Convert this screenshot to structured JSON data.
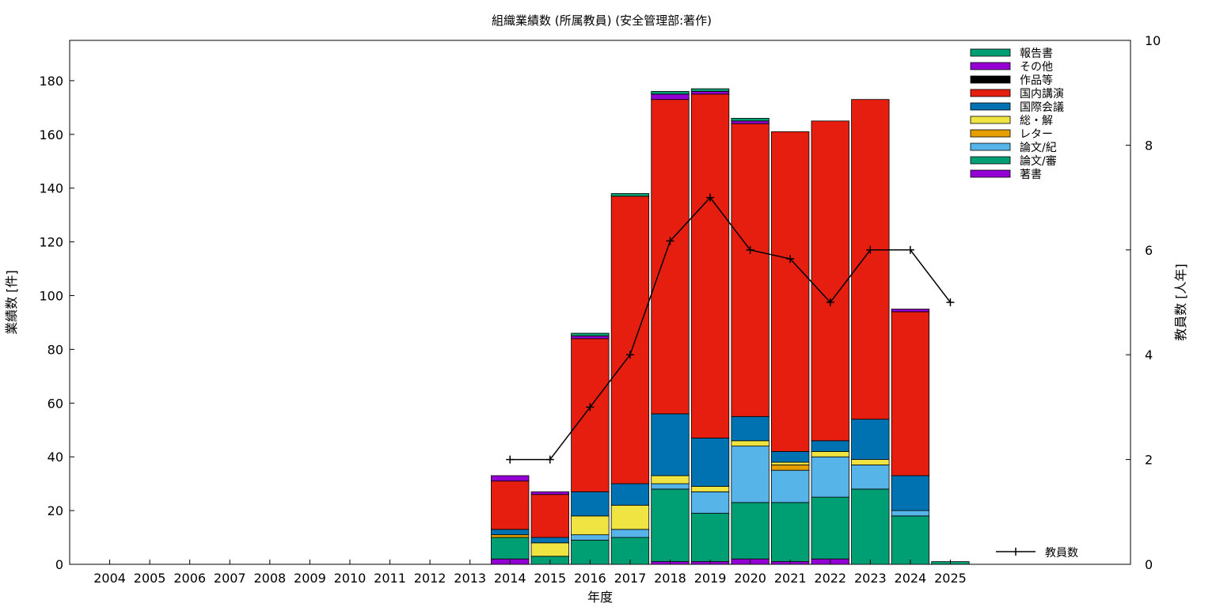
{
  "chart_data": {
    "type": "bar",
    "stacked": true,
    "title": "組織業績数 (所属教員) (安全管理部:著作)",
    "xlabel": "年度",
    "ylabel": "業績数 [件]",
    "y2label": "教員数 [人年]",
    "categories": [
      "2004",
      "2005",
      "2006",
      "2007",
      "2008",
      "2009",
      "2010",
      "2011",
      "2012",
      "2013",
      "2014",
      "2015",
      "2016",
      "2017",
      "2018",
      "2019",
      "2020",
      "2021",
      "2022",
      "2023",
      "2024",
      "2025"
    ],
    "ylim": [
      0,
      195
    ],
    "yticks": [
      0,
      20,
      40,
      60,
      80,
      100,
      120,
      140,
      160,
      180
    ],
    "y2lim": [
      0,
      10
    ],
    "y2ticks": [
      0,
      2,
      4,
      6,
      8,
      10
    ],
    "grid": false,
    "legend_position": "top-right",
    "series": [
      {
        "name": "著書",
        "color": "#9400d3",
        "values": [
          0,
          0,
          0,
          0,
          0,
          0,
          0,
          0,
          0,
          0,
          2,
          0,
          0,
          0,
          1,
          1,
          2,
          1,
          2,
          0,
          0,
          0
        ]
      },
      {
        "name": "論文/審",
        "color": "#009e73",
        "values": [
          0,
          0,
          0,
          0,
          0,
          0,
          0,
          0,
          0,
          0,
          8,
          3,
          9,
          10,
          27,
          18,
          21,
          22,
          23,
          28,
          18,
          1
        ]
      },
      {
        "name": "論文/紀",
        "color": "#56b4e9",
        "values": [
          0,
          0,
          0,
          0,
          0,
          0,
          0,
          0,
          0,
          0,
          0,
          0,
          2,
          3,
          2,
          8,
          21,
          12,
          15,
          9,
          2,
          0
        ]
      },
      {
        "name": "レター",
        "color": "#e69f00",
        "values": [
          0,
          0,
          0,
          0,
          0,
          0,
          0,
          0,
          0,
          0,
          1,
          0,
          0,
          0,
          0,
          0,
          0,
          2,
          0,
          0,
          0,
          0
        ]
      },
      {
        "name": "総・解",
        "color": "#f0e442",
        "values": [
          0,
          0,
          0,
          0,
          0,
          0,
          0,
          0,
          0,
          0,
          0,
          5,
          7,
          9,
          3,
          2,
          2,
          1,
          2,
          2,
          0,
          0
        ]
      },
      {
        "name": "国際会議",
        "color": "#0072b2",
        "values": [
          0,
          0,
          0,
          0,
          0,
          0,
          0,
          0,
          0,
          0,
          2,
          2,
          9,
          8,
          23,
          18,
          9,
          4,
          4,
          15,
          13,
          0
        ]
      },
      {
        "name": "国内講演",
        "color": "#e51e10",
        "values": [
          0,
          0,
          0,
          0,
          0,
          0,
          0,
          0,
          0,
          0,
          18,
          16,
          57,
          107,
          117,
          128,
          109,
          119,
          119,
          119,
          61,
          0
        ]
      },
      {
        "name": "作品等",
        "color": "#000000",
        "values": [
          0,
          0,
          0,
          0,
          0,
          0,
          0,
          0,
          0,
          0,
          0,
          0,
          0,
          0,
          0,
          0,
          0,
          0,
          0,
          0,
          0,
          0
        ]
      },
      {
        "name": "その他",
        "color": "#9400d3",
        "values": [
          0,
          0,
          0,
          0,
          0,
          0,
          0,
          0,
          0,
          0,
          2,
          1,
          1,
          0,
          2,
          1,
          1,
          0,
          0,
          0,
          1,
          0
        ]
      },
      {
        "name": "報告書",
        "color": "#009e73",
        "values": [
          0,
          0,
          0,
          0,
          0,
          0,
          0,
          0,
          0,
          0,
          0,
          0,
          1,
          1,
          1,
          1,
          1,
          0,
          0,
          0,
          0,
          0
        ]
      }
    ],
    "line_series": {
      "name": "教員数",
      "color": "#000000",
      "x": [
        "2014",
        "2015",
        "2016",
        "2017",
        "2018",
        "2019",
        "2020",
        "2021",
        "2022",
        "2023",
        "2024",
        "2025"
      ],
      "values": [
        2,
        2,
        3,
        4,
        6.17,
        7,
        6,
        5.83,
        5,
        6,
        6,
        5
      ]
    }
  }
}
